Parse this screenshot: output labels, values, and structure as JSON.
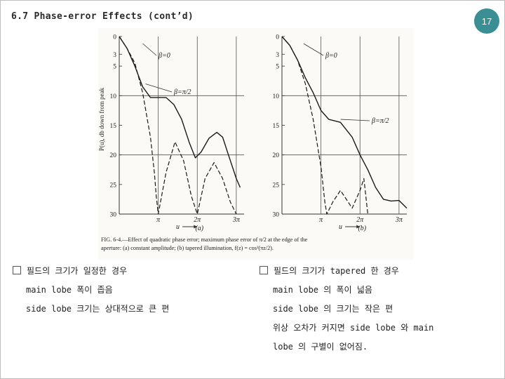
{
  "slide": {
    "title": "6.7 Phase-error Effects (cont’d)",
    "page_number": "17",
    "badge_color": "#3a8f94"
  },
  "figure": {
    "ylabel": "P(u), db down from peak",
    "y_ticks": [
      "0",
      "3",
      "5",
      "10",
      "15",
      "20",
      "25",
      "30"
    ],
    "x_tick_pi": "π",
    "x_tick_2pi": "2π",
    "x_tick_3pi": "3π",
    "x_axis_label": "u",
    "panel_a": {
      "label": "(a)",
      "curve1": "β=0",
      "curve2": "β=π/2"
    },
    "panel_b": {
      "label": "(b)",
      "curve1": "β=0",
      "curve2": "β=π/2"
    },
    "caption_line1": "FIG. 6-4.—Effect of quadratic phase error; maximum phase error of π/2 at the edge of the",
    "caption_line2": "aperture: (a) constant amplitude; (b) tapered illumination, f(z) = cos²(πz/2)."
  },
  "chart_data": [
    {
      "type": "line",
      "title": "(a)",
      "xlabel": "u",
      "ylabel": "P(u), db down from peak",
      "xlim": [
        0,
        3.2
      ],
      "ylim": [
        0,
        30
      ],
      "y_inverted": true,
      "x_unit": "π",
      "series": [
        {
          "name": "β=0",
          "x": [
            0,
            0.2,
            0.4,
            0.6,
            0.8,
            0.9,
            0.95,
            1.0,
            1.2,
            1.43,
            1.65,
            1.85,
            2.0,
            2.2,
            2.43,
            2.65,
            2.85,
            3.0
          ],
          "y": [
            0,
            2,
            4.5,
            9.5,
            17,
            23,
            27,
            30,
            23,
            17.8,
            21,
            27,
            30,
            24,
            21.3,
            24,
            28,
            30
          ]
        },
        {
          "name": "β=π/2",
          "x": [
            0,
            0.2,
            0.4,
            0.6,
            0.8,
            1.0,
            1.2,
            1.4,
            1.6,
            1.8,
            1.95,
            2.1,
            2.3,
            2.5,
            2.65,
            2.8,
            3.0,
            3.1
          ],
          "y": [
            0,
            2,
            5,
            8.5,
            10.3,
            10.3,
            10.3,
            11.5,
            14,
            18,
            20.5,
            19.5,
            17.2,
            16.2,
            17,
            20,
            24,
            25.5
          ]
        }
      ]
    },
    {
      "type": "line",
      "title": "(b)",
      "xlabel": "u",
      "ylabel": "",
      "xlim": [
        0,
        3.2
      ],
      "ylim": [
        0,
        30
      ],
      "y_inverted": true,
      "x_unit": "π",
      "series": [
        {
          "name": "β=0",
          "x": [
            0,
            0.2,
            0.4,
            0.6,
            0.8,
            1.0,
            1.1,
            1.15,
            1.3,
            1.5,
            1.6,
            1.8,
            2.0,
            2.1,
            2.2
          ],
          "y": [
            0,
            1.5,
            4,
            8,
            14,
            22,
            28,
            30,
            28,
            26,
            27,
            29,
            26,
            24,
            30
          ]
        },
        {
          "name": "β=π/2",
          "x": [
            0,
            0.2,
            0.4,
            0.6,
            0.8,
            1.0,
            1.2,
            1.5,
            1.8,
            2.0,
            2.2,
            2.4,
            2.6,
            2.8,
            3.0,
            3.2
          ],
          "y": [
            0,
            1.5,
            4,
            7,
            9.5,
            12.5,
            14,
            14.5,
            17,
            20,
            22.5,
            25.5,
            27.5,
            27.8,
            27.7,
            29
          ]
        }
      ]
    }
  ],
  "notes_left": {
    "bullet": "필드의 크기가 일정한 경우",
    "line1": "main lobe 폭이 좁음",
    "line2": "side lobe 크기는 상대적으로 큰 편"
  },
  "notes_right": {
    "bullet": "필드의 크기가 tapered 한 경우",
    "line1": "main lobe 의 폭이 넓음",
    "line2": "side lobe 의 크기는 작은 편",
    "line3": "위상 오차가 커지면 side lobe 와 main",
    "line4": "lobe 의 구별이 없어짐."
  }
}
